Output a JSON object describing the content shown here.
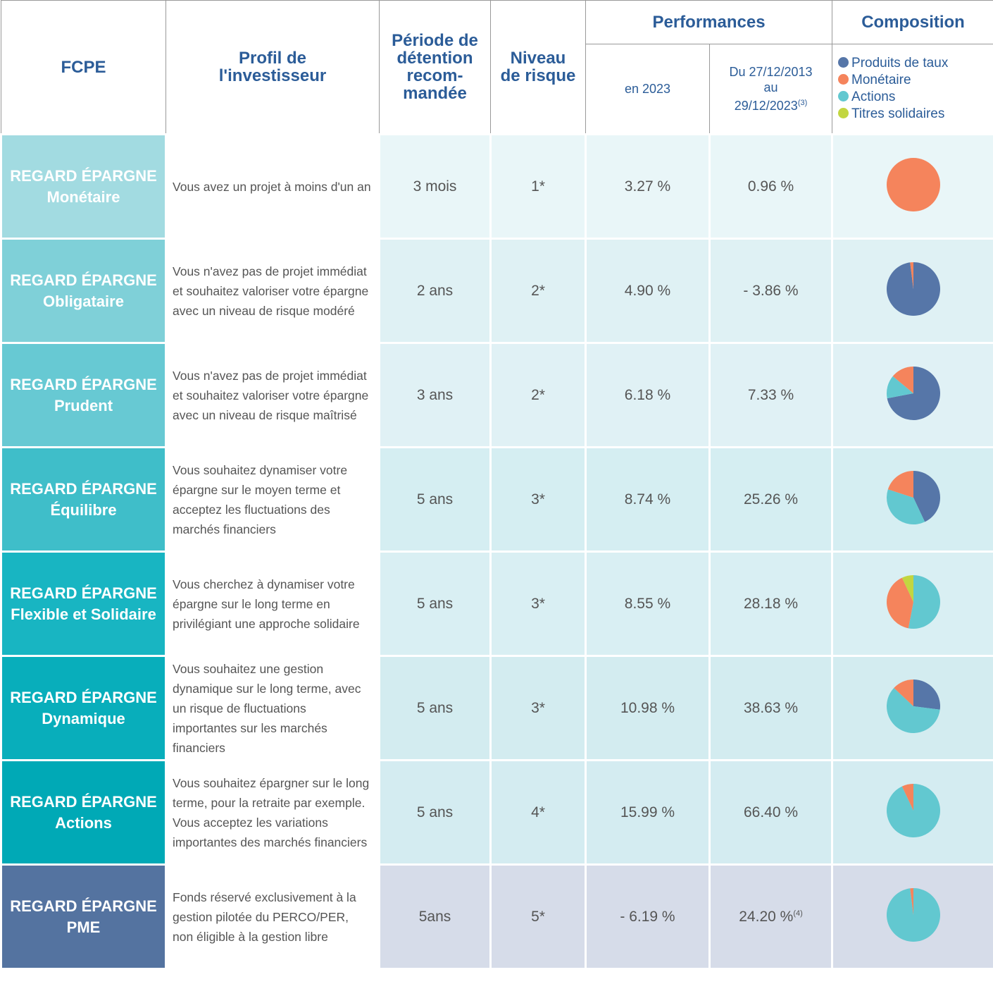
{
  "header": {
    "fund": "FCPE",
    "profile": [
      "Profil de",
      "l'investisseur"
    ],
    "period": [
      "Période de",
      "détention",
      "recom-",
      "mandée"
    ],
    "risk": [
      "Niveau",
      "de risque"
    ],
    "performances": "Performances",
    "perf_year": "en 2023",
    "perf_since": {
      "from": "Du 27/12/2013",
      "mid": "au",
      "to": "29/12/2023",
      "note": "(3)"
    },
    "composition": "Composition",
    "legend": [
      {
        "name": "Produits de taux",
        "color": "#5676a8"
      },
      {
        "name": "Monétaire",
        "color": "#f5845c"
      },
      {
        "name": "Actions",
        "color": "#62c8d0"
      },
      {
        "name": "Titres solidaires",
        "color": "#c2d640"
      }
    ]
  },
  "rows": [
    {
      "fund": [
        "REGARD ÉPARGNE",
        "Monétaire"
      ],
      "profile": "Vous avez un projet à moins d'un an",
      "period": "3 mois",
      "risk": "1*",
      "perf_year": "3.27 %",
      "perf_since": "0.96 %",
      "composition": [
        0,
        100,
        0,
        0
      ]
    },
    {
      "fund": [
        "REGARD ÉPARGNE",
        "Obligataire"
      ],
      "profile": "Vous n'avez pas de projet immédiat et souhaitez valoriser votre épargne avec un niveau de risque modéré",
      "period": "2 ans",
      "risk": "2*",
      "perf_year": "4.90 %",
      "perf_since": "- 3.86 %",
      "composition": [
        98,
        2,
        0,
        0
      ]
    },
    {
      "fund": [
        "REGARD ÉPARGNE",
        "Prudent"
      ],
      "profile": "Vous n'avez pas de projet immédiat et souhaitez valoriser votre épargne avec un niveau de risque maîtrisé",
      "period": "3 ans",
      "risk": "2*",
      "perf_year": "6.18 %",
      "perf_since": "7.33 %",
      "composition": [
        72,
        14,
        14,
        0
      ]
    },
    {
      "fund": [
        "REGARD ÉPARGNE",
        "Équilibre"
      ],
      "profile": "Vous souhaitez dynamiser votre épargne sur le moyen terme et acceptez les fluctuations des marchés financiers",
      "period": "5 ans",
      "risk": "3*",
      "perf_year": "8.74 %",
      "perf_since": "25.26  %",
      "composition": [
        43,
        20,
        37,
        0
      ]
    },
    {
      "fund": [
        "REGARD ÉPARGNE",
        "Flexible et Solidaire"
      ],
      "profile": "Vous cherchez à dynamiser votre épargne sur le long terme en privilégiant une approche solidaire",
      "period": "5 ans",
      "risk": "3*",
      "perf_year": "8.55 %",
      "perf_since": "28.18 %",
      "composition": [
        0,
        40,
        53,
        7
      ]
    },
    {
      "fund": [
        "REGARD ÉPARGNE",
        "Dynamique"
      ],
      "profile": "Vous souhaitez une gestion dynamique sur le long terme, avec un risque de fluctuations importantes sur les marchés financiers",
      "period": "5 ans",
      "risk": "3*",
      "perf_year": "10.98 %",
      "perf_since": "38.63 %",
      "composition": [
        27,
        13,
        60,
        0
      ]
    },
    {
      "fund": [
        "REGARD ÉPARGNE",
        "Actions"
      ],
      "profile": "Vous souhaitez épargner sur le long terme, pour la retraite par exemple. Vous acceptez les variations importantes des marchés financiers",
      "period": "5 ans",
      "risk": "4*",
      "perf_year": "15.99 %",
      "perf_since": "66.40 %",
      "composition": [
        0,
        7,
        93,
        0
      ]
    },
    {
      "fund": [
        "REGARD ÉPARGNE",
        "PME"
      ],
      "profile": "Fonds réservé exclusivement à la gestion pilotée du PERCO/PER, non éligible à la gestion libre",
      "period": "5ans",
      "risk": "5*",
      "perf_year": "- 6.19 %",
      "perf_since": "24.20 %",
      "perf_since_note": "(4)",
      "composition": [
        0,
        2,
        98,
        0
      ]
    }
  ]
}
